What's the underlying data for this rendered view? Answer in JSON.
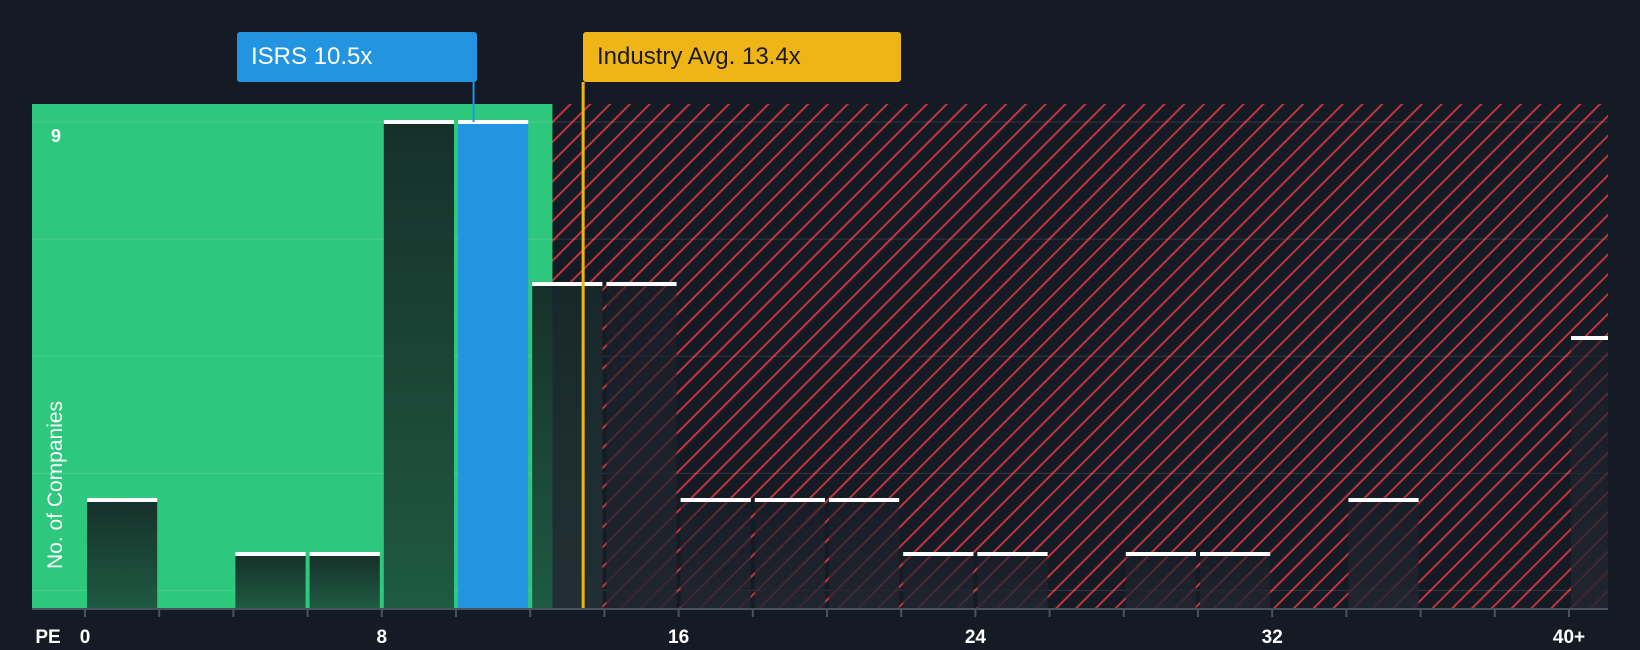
{
  "company_label": "ISRS 10.5x",
  "industry_label": "Industry Avg. 13.4x",
  "colors": {
    "background": "#151b24",
    "fair_zone": "#2ec87c",
    "overvalued_hatch": "#c0343c",
    "company": "#2394e0",
    "industry": "#efb416"
  },
  "chart_data": {
    "type": "bar",
    "title": "",
    "xlabel": "PE",
    "ylabel": "No. of Companies",
    "xlim": [
      0,
      40
    ],
    "ylim": [
      0,
      9
    ],
    "x_tick_values": [
      0,
      8,
      16,
      24,
      32,
      40
    ],
    "x_tick_labels": [
      "0",
      "8",
      "16",
      "24",
      "32",
      "40+"
    ],
    "y_tick_values": [
      9
    ],
    "y_tick_labels": [
      "9"
    ],
    "bin_width": 2,
    "bins": [
      {
        "start": 0,
        "count": 2
      },
      {
        "start": 2,
        "count": 0
      },
      {
        "start": 4,
        "count": 1
      },
      {
        "start": 6,
        "count": 1
      },
      {
        "start": 8,
        "count": 9
      },
      {
        "start": 10,
        "count": 9,
        "highlight": true
      },
      {
        "start": 12,
        "count": 6
      },
      {
        "start": 14,
        "count": 6
      },
      {
        "start": 16,
        "count": 2
      },
      {
        "start": 18,
        "count": 2
      },
      {
        "start": 20,
        "count": 2
      },
      {
        "start": 22,
        "count": 1
      },
      {
        "start": 24,
        "count": 1
      },
      {
        "start": 26,
        "count": 0
      },
      {
        "start": 28,
        "count": 1
      },
      {
        "start": 30,
        "count": 1
      },
      {
        "start": 32,
        "count": 0
      },
      {
        "start": 34,
        "count": 2
      },
      {
        "start": 36,
        "count": 0
      },
      {
        "start": 38,
        "count": 0
      },
      {
        "start": 40,
        "count": 5
      }
    ],
    "company_value": 10.5,
    "industry_value": 13.4,
    "fair_zone_end": 12.6,
    "grid": true
  }
}
